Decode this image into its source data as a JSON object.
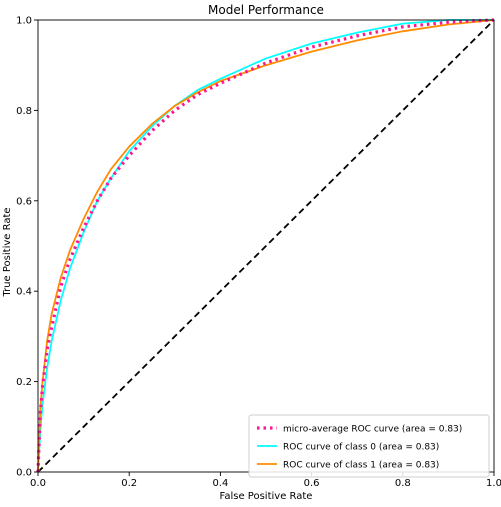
{
  "chart_data": {
    "type": "line",
    "title": "Model Performance",
    "xlabel": "False Positive Rate",
    "ylabel": "True Positive Rate",
    "xlim": [
      0.0,
      1.0
    ],
    "ylim": [
      0.0,
      1.0
    ],
    "x_ticks": [
      0.0,
      0.2,
      0.4,
      0.6,
      0.8,
      1.0
    ],
    "y_ticks": [
      0.0,
      0.2,
      0.4,
      0.6,
      0.8,
      1.0
    ],
    "grid": false,
    "legend_position": "lower-right",
    "series": [
      {
        "name": "micro-average ROC curve (area = 0.83)",
        "color": "#ff1493",
        "style": "dotted",
        "x": [
          0.0,
          0.005,
          0.01,
          0.02,
          0.03,
          0.05,
          0.07,
          0.1,
          0.13,
          0.16,
          0.2,
          0.25,
          0.3,
          0.35,
          0.4,
          0.5,
          0.6,
          0.7,
          0.8,
          0.9,
          0.95,
          1.0
        ],
        "y": [
          0.0,
          0.13,
          0.19,
          0.27,
          0.32,
          0.41,
          0.47,
          0.54,
          0.6,
          0.65,
          0.7,
          0.755,
          0.8,
          0.835,
          0.86,
          0.905,
          0.94,
          0.965,
          0.985,
          0.995,
          0.998,
          1.0
        ]
      },
      {
        "name": "ROC curve of class 0 (area = 0.83)",
        "color": "#00ffff",
        "style": "solid",
        "x": [
          0.0,
          0.005,
          0.01,
          0.02,
          0.03,
          0.05,
          0.07,
          0.1,
          0.13,
          0.16,
          0.2,
          0.25,
          0.3,
          0.35,
          0.4,
          0.5,
          0.6,
          0.7,
          0.8,
          0.9,
          0.95,
          1.0
        ],
        "y": [
          0.0,
          0.09,
          0.15,
          0.23,
          0.29,
          0.38,
          0.45,
          0.53,
          0.6,
          0.65,
          0.71,
          0.765,
          0.81,
          0.845,
          0.87,
          0.915,
          0.948,
          0.972,
          0.992,
          1.0,
          1.0,
          1.0
        ]
      },
      {
        "name": "ROC curve of class 1 (area = 0.83)",
        "color": "#ff8c00",
        "style": "solid",
        "x": [
          0.0,
          0.005,
          0.01,
          0.02,
          0.03,
          0.05,
          0.07,
          0.1,
          0.13,
          0.16,
          0.2,
          0.25,
          0.3,
          0.35,
          0.4,
          0.5,
          0.6,
          0.7,
          0.8,
          0.9,
          0.95,
          1.0
        ],
        "y": [
          0.0,
          0.14,
          0.2,
          0.29,
          0.35,
          0.43,
          0.49,
          0.56,
          0.62,
          0.67,
          0.72,
          0.77,
          0.81,
          0.84,
          0.865,
          0.9,
          0.93,
          0.955,
          0.975,
          0.99,
          0.995,
          1.0
        ]
      },
      {
        "color": "#000000",
        "style": "dashed",
        "x": [
          0.0,
          1.0
        ],
        "y": [
          0.0,
          1.0
        ]
      }
    ]
  }
}
